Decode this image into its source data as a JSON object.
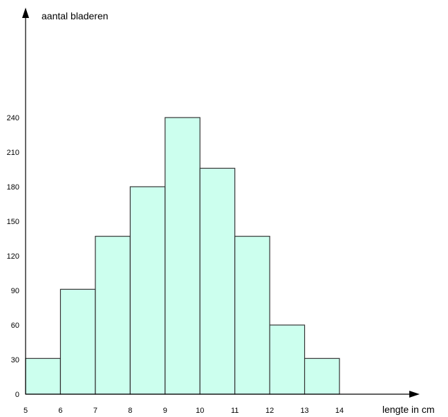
{
  "chart_data": {
    "type": "bar",
    "histogram": true,
    "bin_edges": [
      5,
      6,
      7,
      8,
      9,
      10,
      11,
      12,
      13,
      14
    ],
    "values": [
      31,
      91,
      137,
      180,
      240,
      196,
      137,
      60,
      31
    ],
    "x_ticks": [
      "5",
      "6",
      "7",
      "8",
      "9",
      "10",
      "11",
      "12",
      "13",
      "14"
    ],
    "y_ticks": [
      "0",
      "30",
      "60",
      "90",
      "120",
      "150",
      "180",
      "210",
      "240"
    ],
    "xlabel": "lengte in cm",
    "ylabel": "aantal bladeren",
    "xlim": [
      5,
      16.2
    ],
    "ylim": [
      0,
      300
    ],
    "grid": false,
    "bar_color": "#ccffee",
    "edge_color": "#333333"
  }
}
